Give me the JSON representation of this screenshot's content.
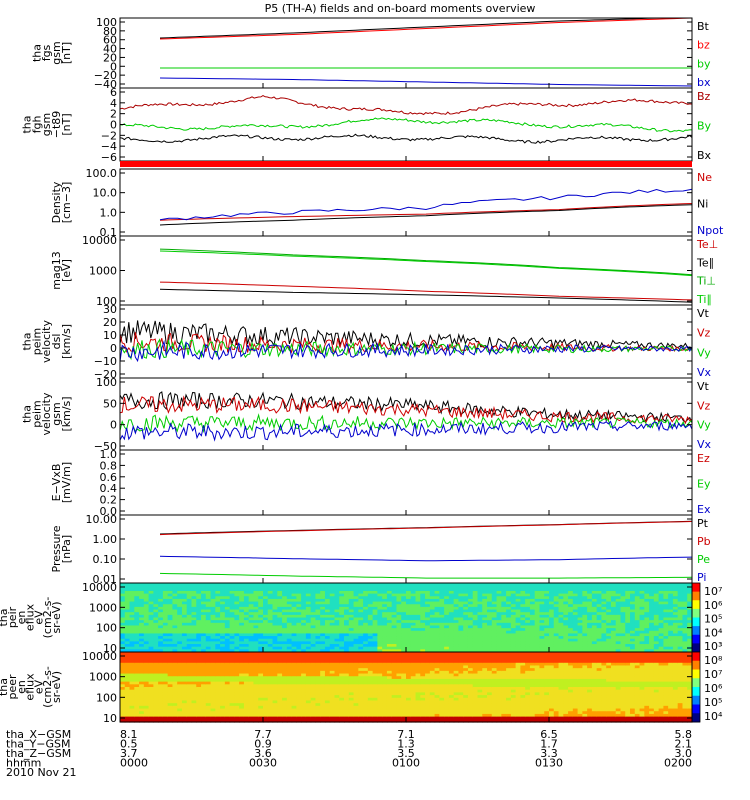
{
  "title": "P5 (TH-A) fields and on-board moments overview",
  "panels": [
    {
      "id": "fgs",
      "ylabel": [
        "tha",
        "fgs",
        "gsm",
        "[nT]"
      ],
      "ylim": [
        -40,
        100
      ],
      "yticks": [
        "100",
        "80",
        "60",
        "40",
        "20",
        "0",
        "−20",
        "−40"
      ],
      "legend": [
        {
          "t": "Bt",
          "c": "#000000"
        },
        {
          "t": "bz",
          "c": "#ff0000"
        },
        {
          "t": "by",
          "c": "#00cc00"
        },
        {
          "t": "bx",
          "c": "#0000cc"
        }
      ]
    },
    {
      "id": "fgh",
      "ylabel": [
        "tha",
        "fgh",
        "gsm",
        "−t89",
        "[nT]"
      ],
      "ylim": [
        -7,
        7
      ],
      "yticks": [
        "6",
        "4",
        "2",
        "0",
        "−2",
        "−4",
        "−6"
      ],
      "legend": [
        {
          "t": "Bz",
          "c": "#aa0000"
        },
        {
          "t": "By",
          "c": "#00cc00"
        },
        {
          "t": "Bx",
          "c": "#000000"
        }
      ]
    },
    {
      "id": "density",
      "ylabel": [
        "Density",
        "[cm−3]"
      ],
      "ylim": [
        0.1,
        200
      ],
      "log": true,
      "yticks": [
        "100.0",
        "10.0",
        "1.0",
        "0.1"
      ],
      "legend": [
        {
          "t": "Ne",
          "c": "#cc0000"
        },
        {
          "t": "Ni",
          "c": "#000000"
        },
        {
          "t": "Npot",
          "c": "#0000cc"
        }
      ]
    },
    {
      "id": "temp",
      "ylabel": [
        "mag13",
        "[eV]"
      ],
      "ylim": [
        40,
        10000
      ],
      "log": true,
      "yticks": [
        "10000",
        "1000",
        "100"
      ],
      "legend": [
        {
          "t": "Te⊥",
          "c": "#cc0000"
        },
        {
          "t": "Te∥",
          "c": "#000000"
        },
        {
          "t": "Ti⊥",
          "c": "#00aa00"
        },
        {
          "t": "Ti∥",
          "c": "#00cc00"
        }
      ]
    },
    {
      "id": "peim_dsl",
      "ylabel": [
        "tha",
        "peim",
        "velocity",
        "dsl",
        "[km/s]"
      ],
      "ylim": [
        -20,
        30
      ],
      "yticks": [
        "30",
        "20",
        "10",
        "0",
        "−10",
        "−20"
      ],
      "legend": [
        {
          "t": "Vt",
          "c": "#000000"
        },
        {
          "t": "Vz",
          "c": "#cc0000"
        },
        {
          "t": "Vy",
          "c": "#00cc00"
        },
        {
          "t": "Vx",
          "c": "#0000cc"
        }
      ]
    },
    {
      "id": "peim_gsm",
      "ylabel": [
        "tha",
        "peim",
        "velocity",
        "gsm",
        "[km/s]"
      ],
      "ylim": [
        -60,
        100
      ],
      "yticks": [
        "100",
        "50",
        "0",
        "−50"
      ],
      "legend": [
        {
          "t": "Vt",
          "c": "#000000"
        },
        {
          "t": "Vz",
          "c": "#cc0000"
        },
        {
          "t": "Vy",
          "c": "#00cc00"
        },
        {
          "t": "Vx",
          "c": "#0000cc"
        }
      ]
    },
    {
      "id": "efield",
      "ylabel": [
        "E−VxB",
        "[mV/m]"
      ],
      "ylim": [
        -1,
        1
      ],
      "yticks": [
        "1.0",
        "0.8",
        "0.6",
        "0.4",
        "0.2",
        "0.0"
      ],
      "legend": [
        {
          "t": "Ez",
          "c": "#cc0000"
        },
        {
          "t": "Ey",
          "c": "#00cc00"
        },
        {
          "t": "Ex",
          "c": "#0000cc"
        }
      ]
    },
    {
      "id": "pressure",
      "ylabel": [
        "Pressure",
        "[nPa]"
      ],
      "ylim": [
        0.007,
        12
      ],
      "log": true,
      "yticks": [
        "10.00",
        "1.00",
        "0.10",
        "0.01"
      ],
      "legend": [
        {
          "t": "Pt",
          "c": "#000000"
        },
        {
          "t": "Pb",
          "c": "#cc0000"
        },
        {
          "t": "Pe",
          "c": "#00cc00"
        },
        {
          "t": "Pi",
          "c": "#0000cc"
        }
      ]
    },
    {
      "id": "peir",
      "ylabel": [
        "tha",
        "peir",
        "en",
        "eflux",
        "eV",
        "(cm2-s-",
        "sr-eV)"
      ],
      "yticks": [
        "10000",
        "1000",
        "100",
        "10"
      ],
      "colorbar": [
        "10⁷",
        "10⁶",
        "10⁵",
        "10⁴",
        "10³"
      ]
    },
    {
      "id": "peer",
      "ylabel": [
        "tha",
        "peer",
        "en",
        "eflux",
        "eV",
        "(cm2-s-",
        "sr-eV)"
      ],
      "yticks": [
        "10000",
        "1000",
        "100",
        "10"
      ],
      "colorbar": [
        "10⁸",
        "10⁷",
        "10⁶",
        "10⁵",
        "10⁴"
      ]
    }
  ],
  "footer": {
    "labels": [
      "tha_X−GSM",
      "tha_Y−GSM",
      "tha_Z−GSM",
      "hhmm",
      "2010 Nov 21"
    ],
    "columns": [
      [
        "8.1",
        "0.5",
        "3.7",
        "0000"
      ],
      [
        "7.7",
        "0.9",
        "3.6",
        "0030"
      ],
      [
        "7.1",
        "1.3",
        "3.5",
        "0100"
      ],
      [
        "6.5",
        "1.7",
        "3.3",
        "0130"
      ],
      [
        "5.8",
        "2.1",
        "3.0",
        "0200"
      ]
    ]
  },
  "chart_data": [
    {
      "type": "line",
      "title": "P5 (TH-A) fields and on-board moments overview",
      "ylabel": "tha fgs gsm [nT]",
      "x": [
        "0000",
        "0030",
        "0100",
        "0130",
        "0200"
      ],
      "ylim": [
        -40,
        100
      ],
      "series": [
        {
          "name": "Bt",
          "values": [
            60,
            70,
            82,
            94,
            102
          ]
        },
        {
          "name": "bz",
          "values": [
            58,
            67,
            79,
            91,
            100
          ]
        },
        {
          "name": "by",
          "values": [
            0,
            0,
            0,
            0,
            0
          ]
        },
        {
          "name": "bx",
          "values": [
            -20,
            -23,
            -28,
            -33,
            -36
          ]
        }
      ]
    },
    {
      "type": "line",
      "ylabel": "tha fgh gsm −t89 [nT]",
      "x": [
        "0000",
        "0030",
        "0100",
        "0130",
        "0200"
      ],
      "ylim": [
        -7,
        7
      ],
      "series": [
        {
          "name": "Bz",
          "values": [
            3,
            5,
            2,
            4,
            4.5
          ]
        },
        {
          "name": "By",
          "values": [
            -0.5,
            -0.5,
            1,
            0,
            -1
          ]
        },
        {
          "name": "Bx",
          "values": [
            -3,
            -2.5,
            -2.5,
            -3,
            -2.5
          ]
        }
      ]
    },
    {
      "type": "line",
      "ylabel": "Density [cm−3]",
      "x": [
        "0000",
        "0030",
        "0100",
        "0130",
        "0200"
      ],
      "ylim": [
        0.1,
        200
      ],
      "series": [
        {
          "name": "Ne",
          "values": [
            0.6,
            0.9,
            1.2,
            2,
            4
          ]
        },
        {
          "name": "Ni",
          "values": [
            0.35,
            0.6,
            1,
            1.8,
            3.5
          ]
        },
        {
          "name": "Npot",
          "values": [
            0.6,
            1.5,
            2.5,
            8,
            20
          ]
        }
      ]
    },
    {
      "type": "line",
      "ylabel": "mag13 [eV]",
      "x": [
        "0000",
        "0030",
        "0100",
        "0130",
        "0200"
      ],
      "ylim": [
        40,
        10000
      ],
      "series": [
        {
          "name": "Te⊥",
          "values": [
            250,
            180,
            120,
            80,
            60
          ]
        },
        {
          "name": "Te∥",
          "values": [
            140,
            110,
            90,
            70,
            50
          ]
        },
        {
          "name": "Ti⊥",
          "values": [
            3500,
            2200,
            1400,
            800,
            450
          ]
        },
        {
          "name": "Ti∥",
          "values": [
            3000,
            2000,
            1300,
            750,
            420
          ]
        }
      ]
    },
    {
      "type": "line",
      "ylabel": "tha peim velocity dsl [km/s]",
      "x": [
        "0000",
        "0030",
        "0100",
        "0130",
        "0200"
      ],
      "ylim": [
        -20,
        30
      ],
      "series": [
        {
          "name": "Vt",
          "values": [
            12,
            9,
            6,
            4,
            2
          ]
        },
        {
          "name": "Vz",
          "values": [
            5,
            3,
            2,
            1,
            0
          ]
        },
        {
          "name": "Vy",
          "values": [
            0,
            0,
            0,
            0,
            0
          ]
        },
        {
          "name": "Vx",
          "values": [
            -2,
            -1,
            -1,
            0,
            0
          ]
        }
      ]
    },
    {
      "type": "line",
      "ylabel": "tha peim velocity gsm [km/s]",
      "x": [
        "0000",
        "0030",
        "0100",
        "0130",
        "0200"
      ],
      "ylim": [
        -60,
        100
      ],
      "series": [
        {
          "name": "Vt",
          "values": [
            50,
            50,
            40,
            20,
            10
          ]
        },
        {
          "name": "Vz",
          "values": [
            40,
            40,
            30,
            15,
            8
          ]
        },
        {
          "name": "Vy",
          "values": [
            0,
            0,
            0,
            0,
            0
          ]
        },
        {
          "name": "Vx",
          "values": [
            -20,
            -20,
            -15,
            -10,
            -5
          ]
        }
      ]
    },
    {
      "type": "line",
      "ylabel": "E−VxB [mV/m]",
      "x": [
        "0000",
        "0030",
        "0100",
        "0130",
        "0200"
      ],
      "ylim": [
        0,
        1
      ],
      "series": []
    },
    {
      "type": "line",
      "ylabel": "Pressure [nPa]",
      "x": [
        "0000",
        "0030",
        "0100",
        "0130",
        "0200"
      ],
      "ylim": [
        0.007,
        12
      ],
      "series": [
        {
          "name": "Pt",
          "values": [
            1.5,
            2.2,
            3,
            4.2,
            6
          ]
        },
        {
          "name": "Pb",
          "values": [
            1.4,
            2.1,
            2.9,
            4.1,
            5.9
          ]
        },
        {
          "name": "Pe",
          "values": [
            0.02,
            0.015,
            0.012,
            0.012,
            0.013
          ]
        },
        {
          "name": "Pi",
          "values": [
            0.13,
            0.1,
            0.08,
            0.09,
            0.12
          ]
        }
      ]
    },
    {
      "type": "heatmap",
      "ylabel": "tha peir en eflux eV (cm2-s-sr-eV)",
      "x": [
        "0000",
        "0030",
        "0100",
        "0130",
        "0200"
      ],
      "ylim": [
        8,
        20000
      ]
    },
    {
      "type": "heatmap",
      "ylabel": "tha peer en eflux eV (cm2-s-sr-eV)",
      "x": [
        "0000",
        "0030",
        "0100",
        "0130",
        "0200"
      ],
      "ylim": [
        8,
        20000
      ]
    }
  ]
}
